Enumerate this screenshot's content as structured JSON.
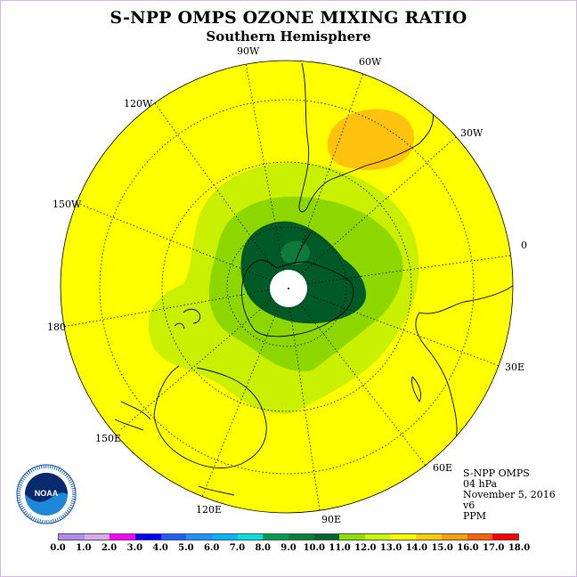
{
  "title": "S-NPP OMPS OZONE MIXING RATIO",
  "subtitle": "Southern Hemisphere",
  "longitude_labels": [
    "90W",
    "60W",
    "30W",
    "0",
    "30E",
    "60E",
    "90E",
    "120E",
    "150E",
    "180",
    "150W",
    "120W"
  ],
  "info": {
    "instrument": "S-NPP OMPS",
    "level": "04 hPa",
    "date": "November 5, 2016",
    "version": "v6",
    "units": "PPM"
  },
  "colorbar": {
    "ticks": [
      "0.0",
      "1.0",
      "2.0",
      "3.0",
      "4.0",
      "5.0",
      "6.0",
      "7.0",
      "8.0",
      "9.0",
      "10.0",
      "11.0",
      "12.0",
      "13.0",
      "14.0",
      "15.0",
      "16.0",
      "17.0",
      "18.0"
    ],
    "colors": [
      "#b08cf0",
      "#d9a8f0",
      "#ff00ff",
      "#0000ff",
      "#1e5eff",
      "#1e90ff",
      "#00b4ff",
      "#00e0e0",
      "#009a50",
      "#00823c",
      "#006430",
      "#8ee000",
      "#c6ff00",
      "#ffff00",
      "#ffcc00",
      "#ffa000",
      "#ff6000",
      "#ff0000",
      "#8b5a3c"
    ]
  },
  "logo_text": "NOAA",
  "colors": {
    "yellow": "#ffff00",
    "orange": "#ffc20e",
    "light_green": "#c8f000",
    "mid_green": "#8ed600",
    "dark_green": "#0e6b32",
    "deep_green": "#005a28",
    "frame": "#d8b4e8"
  }
}
